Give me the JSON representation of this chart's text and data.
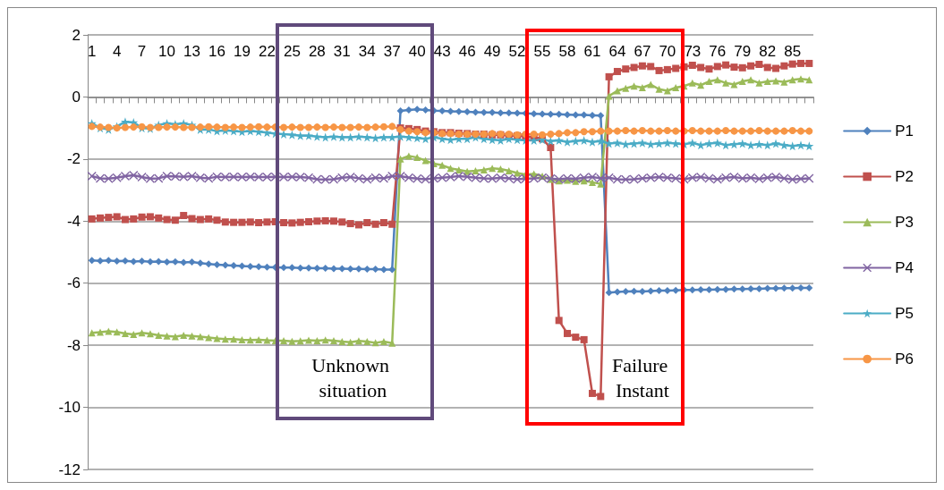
{
  "chart_data": {
    "type": "line",
    "categories": [
      "1",
      null,
      null,
      "4",
      null,
      null,
      "7",
      null,
      null,
      "10",
      null,
      null,
      "13",
      null,
      null,
      "16",
      null,
      null,
      "19",
      null,
      null,
      "22",
      null,
      null,
      "25",
      null,
      null,
      "28",
      null,
      null,
      "31",
      null,
      null,
      "34",
      null,
      null,
      "37",
      null,
      null,
      "40",
      null,
      null,
      "43",
      null,
      null,
      "46",
      null,
      null,
      "49",
      null,
      null,
      "52",
      null,
      null,
      "55",
      null,
      null,
      "58",
      null,
      null,
      "61",
      null,
      null,
      "64",
      null,
      null,
      "67",
      null,
      null,
      "70",
      null,
      null,
      "73",
      null,
      null,
      "76",
      null,
      null,
      "79",
      null,
      null,
      "82",
      null,
      null,
      "85",
      null,
      null
    ],
    "series": [
      {
        "name": "P1",
        "color": "#4f81bd",
        "marker": "diamond",
        "values": [
          -5.27,
          -5.28,
          -5.27,
          -5.29,
          -5.28,
          -5.3,
          -5.29,
          -5.31,
          -5.3,
          -5.32,
          -5.31,
          -5.33,
          -5.32,
          -5.35,
          -5.38,
          -5.4,
          -5.42,
          -5.43,
          -5.45,
          -5.46,
          -5.47,
          -5.48,
          -5.49,
          -5.5,
          -5.5,
          -5.51,
          -5.51,
          -5.52,
          -5.52,
          -5.53,
          -5.53,
          -5.54,
          -5.54,
          -5.55,
          -5.55,
          -5.56,
          -5.56,
          -0.45,
          -0.42,
          -0.4,
          -0.42,
          -0.44,
          -0.45,
          -0.46,
          -0.47,
          -0.48,
          -0.49,
          -0.5,
          -0.5,
          -0.51,
          -0.51,
          -0.52,
          -0.53,
          -0.54,
          -0.55,
          -0.56,
          -0.56,
          -0.57,
          -0.58,
          -0.58,
          -0.59,
          -0.6,
          -6.3,
          -6.28,
          -6.27,
          -6.26,
          -6.27,
          -6.25,
          -6.24,
          -6.24,
          -6.23,
          -6.22,
          -6.22,
          -6.21,
          -6.21,
          -6.2,
          -6.2,
          -6.19,
          -6.19,
          -6.18,
          -6.18,
          -6.17,
          -6.17,
          -6.16,
          -6.16,
          -6.15,
          -6.15
        ]
      },
      {
        "name": "P2",
        "color": "#c0504d",
        "marker": "square",
        "values": [
          -3.93,
          -3.9,
          -3.88,
          -3.86,
          -3.95,
          -3.93,
          -3.87,
          -3.86,
          -3.9,
          -3.95,
          -3.97,
          -3.82,
          -3.92,
          -3.95,
          -3.93,
          -3.97,
          -4.03,
          -4.04,
          -4.04,
          -4.03,
          -4.05,
          -4.03,
          -4.02,
          -4.05,
          -4.06,
          -4.04,
          -4.02,
          -4.0,
          -3.99,
          -4.0,
          -4.03,
          -4.08,
          -4.12,
          -4.05,
          -4.1,
          -4.05,
          -4.1,
          -1.0,
          -1.02,
          -1.05,
          -1.1,
          -1.12,
          -1.15,
          -1.15,
          -1.17,
          -1.18,
          -1.2,
          -1.2,
          -1.22,
          -1.22,
          -1.25,
          -1.25,
          -1.28,
          -1.3,
          -1.35,
          -1.63,
          -7.2,
          -7.62,
          -7.74,
          -7.82,
          -9.55,
          -9.65,
          0.65,
          0.82,
          0.9,
          0.95,
          1.0,
          0.98,
          0.85,
          0.88,
          0.92,
          0.97,
          1.02,
          0.95,
          0.9,
          0.98,
          1.03,
          0.96,
          0.94,
          1.0,
          1.05,
          0.95,
          0.92,
          1.0,
          1.06,
          1.08,
          1.08
        ]
      },
      {
        "name": "P3",
        "color": "#9bbb59",
        "marker": "triangle",
        "values": [
          -7.6,
          -7.58,
          -7.55,
          -7.57,
          -7.62,
          -7.65,
          -7.6,
          -7.63,
          -7.68,
          -7.7,
          -7.72,
          -7.68,
          -7.7,
          -7.72,
          -7.75,
          -7.78,
          -7.8,
          -7.8,
          -7.82,
          -7.83,
          -7.82,
          -7.84,
          -7.85,
          -7.85,
          -7.87,
          -7.86,
          -7.84,
          -7.85,
          -7.83,
          -7.85,
          -7.88,
          -7.9,
          -7.86,
          -7.88,
          -7.92,
          -7.88,
          -7.93,
          -2.0,
          -1.9,
          -1.95,
          -2.05,
          -2.15,
          -2.2,
          -2.3,
          -2.35,
          -2.4,
          -2.38,
          -2.35,
          -2.3,
          -2.32,
          -2.38,
          -2.45,
          -2.5,
          -2.48,
          -2.55,
          -2.65,
          -2.7,
          -2.68,
          -2.72,
          -2.7,
          -2.75,
          -2.8,
          0.03,
          0.2,
          0.28,
          0.35,
          0.3,
          0.4,
          0.25,
          0.2,
          0.3,
          0.35,
          0.45,
          0.38,
          0.5,
          0.55,
          0.45,
          0.4,
          0.5,
          0.55,
          0.45,
          0.5,
          0.52,
          0.48,
          0.55,
          0.58,
          0.55
        ]
      },
      {
        "name": "P4",
        "color": "#8064a2",
        "marker": "cross",
        "values": [
          -2.55,
          -2.62,
          -2.63,
          -2.6,
          -2.55,
          -2.52,
          -2.58,
          -2.63,
          -2.62,
          -2.55,
          -2.56,
          -2.57,
          -2.55,
          -2.6,
          -2.62,
          -2.57,
          -2.58,
          -2.57,
          -2.58,
          -2.57,
          -2.58,
          -2.58,
          -2.57,
          -2.58,
          -2.57,
          -2.58,
          -2.6,
          -2.65,
          -2.66,
          -2.65,
          -2.6,
          -2.58,
          -2.62,
          -2.65,
          -2.6,
          -2.62,
          -2.55,
          -2.55,
          -2.6,
          -2.63,
          -2.65,
          -2.62,
          -2.6,
          -2.58,
          -2.55,
          -2.57,
          -2.6,
          -2.62,
          -2.63,
          -2.6,
          -2.62,
          -2.65,
          -2.63,
          -2.62,
          -2.6,
          -2.63,
          -2.65,
          -2.62,
          -2.64,
          -2.6,
          -2.58,
          -2.62,
          -2.6,
          -2.65,
          -2.66,
          -2.65,
          -2.62,
          -2.6,
          -2.58,
          -2.6,
          -2.62,
          -2.65,
          -2.6,
          -2.58,
          -2.62,
          -2.65,
          -2.6,
          -2.58,
          -2.62,
          -2.6,
          -2.64,
          -2.6,
          -2.58,
          -2.62,
          -2.66,
          -2.64,
          -2.62
        ]
      },
      {
        "name": "P5",
        "color": "#4bacc6",
        "marker": "star",
        "values": [
          -0.85,
          -1.0,
          -1.05,
          -0.95,
          -0.8,
          -0.82,
          -1.0,
          -1.02,
          -0.9,
          -0.85,
          -0.88,
          -0.85,
          -0.9,
          -1.05,
          -1.05,
          -1.1,
          -1.08,
          -1.1,
          -1.12,
          -1.1,
          -1.12,
          -1.15,
          -1.18,
          -1.2,
          -1.22,
          -1.25,
          -1.25,
          -1.28,
          -1.3,
          -1.28,
          -1.3,
          -1.3,
          -1.28,
          -1.3,
          -1.32,
          -1.3,
          -1.3,
          -1.28,
          -1.3,
          -1.32,
          -1.35,
          -1.3,
          -1.35,
          -1.38,
          -1.35,
          -1.35,
          -1.3,
          -1.35,
          -1.38,
          -1.4,
          -1.35,
          -1.38,
          -1.4,
          -1.4,
          -1.38,
          -1.42,
          -1.4,
          -1.45,
          -1.42,
          -1.4,
          -1.45,
          -1.42,
          -1.5,
          -1.48,
          -1.52,
          -1.5,
          -1.48,
          -1.52,
          -1.5,
          -1.48,
          -1.5,
          -1.52,
          -1.48,
          -1.55,
          -1.5,
          -1.48,
          -1.55,
          -1.52,
          -1.5,
          -1.55,
          -1.52,
          -1.55,
          -1.5,
          -1.55,
          -1.58,
          -1.55,
          -1.58
        ]
      },
      {
        "name": "P6",
        "color": "#f79646",
        "marker": "circle",
        "values": [
          -0.95,
          -0.97,
          -0.98,
          -1.0,
          -0.98,
          -0.97,
          -0.96,
          -0.98,
          -0.98,
          -0.97,
          -0.97,
          -0.98,
          -0.98,
          -0.97,
          -0.96,
          -0.97,
          -0.98,
          -0.97,
          -0.98,
          -0.97,
          -0.96,
          -0.97,
          -0.97,
          -0.98,
          -0.97,
          -0.98,
          -0.98,
          -0.97,
          -0.98,
          -0.97,
          -0.98,
          -0.98,
          -0.97,
          -0.98,
          -0.97,
          -0.96,
          -0.95,
          -1.05,
          -1.1,
          -1.12,
          -1.15,
          -1.15,
          -1.18,
          -1.18,
          -1.2,
          -1.2,
          -1.2,
          -1.2,
          -1.18,
          -1.2,
          -1.2,
          -1.22,
          -1.2,
          -1.2,
          -1.22,
          -1.2,
          -1.18,
          -1.15,
          -1.15,
          -1.12,
          -1.12,
          -1.1,
          -1.1,
          -1.1,
          -1.08,
          -1.1,
          -1.08,
          -1.1,
          -1.1,
          -1.08,
          -1.1,
          -1.1,
          -1.08,
          -1.1,
          -1.1,
          -1.1,
          -1.08,
          -1.1,
          -1.1,
          -1.1,
          -1.08,
          -1.1,
          -1.1,
          -1.1,
          -1.08,
          -1.1,
          -1.1
        ]
      }
    ],
    "ylim": [
      -12,
      2
    ],
    "yticks": [
      -12,
      -10,
      -8,
      -6,
      -4,
      -2,
      0,
      2
    ],
    "grid": "y",
    "legend": "right",
    "line_style": "solid",
    "annotations": [
      "Unknown situation",
      "Failure Instant"
    ]
  }
}
